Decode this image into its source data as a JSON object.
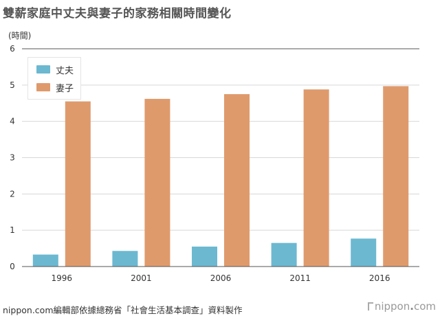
{
  "title": "雙薪家庭中丈夫與妻子的家務相關時間變化",
  "source": "nippon.com編輯部依據總務省「社會生活基本調查」資料製作",
  "logo": {
    "prefix": "nippon",
    "dot": ".",
    "suffix": "com"
  },
  "colors": {
    "husband": "#6cb8d1",
    "wife": "#df9a6c",
    "grid": "#d7d7d7",
    "axis": "#555555"
  },
  "chart_data": {
    "type": "bar",
    "title": "雙薪家庭中丈夫與妻子的家務相關時間變化",
    "ylabel": "(時間)",
    "xlabel": "",
    "categories": [
      "1996",
      "2001",
      "2006",
      "2011",
      "2016"
    ],
    "series": [
      {
        "name": "丈夫",
        "values": [
          0.33,
          0.43,
          0.55,
          0.65,
          0.77
        ]
      },
      {
        "name": "妻子",
        "values": [
          4.55,
          4.62,
          4.75,
          4.88,
          4.97
        ]
      }
    ],
    "ylim": [
      0,
      6
    ],
    "yticks": [
      "0",
      "1",
      "2",
      "3",
      "4",
      "5",
      "6"
    ],
    "grid": true,
    "legend": "top-left"
  }
}
